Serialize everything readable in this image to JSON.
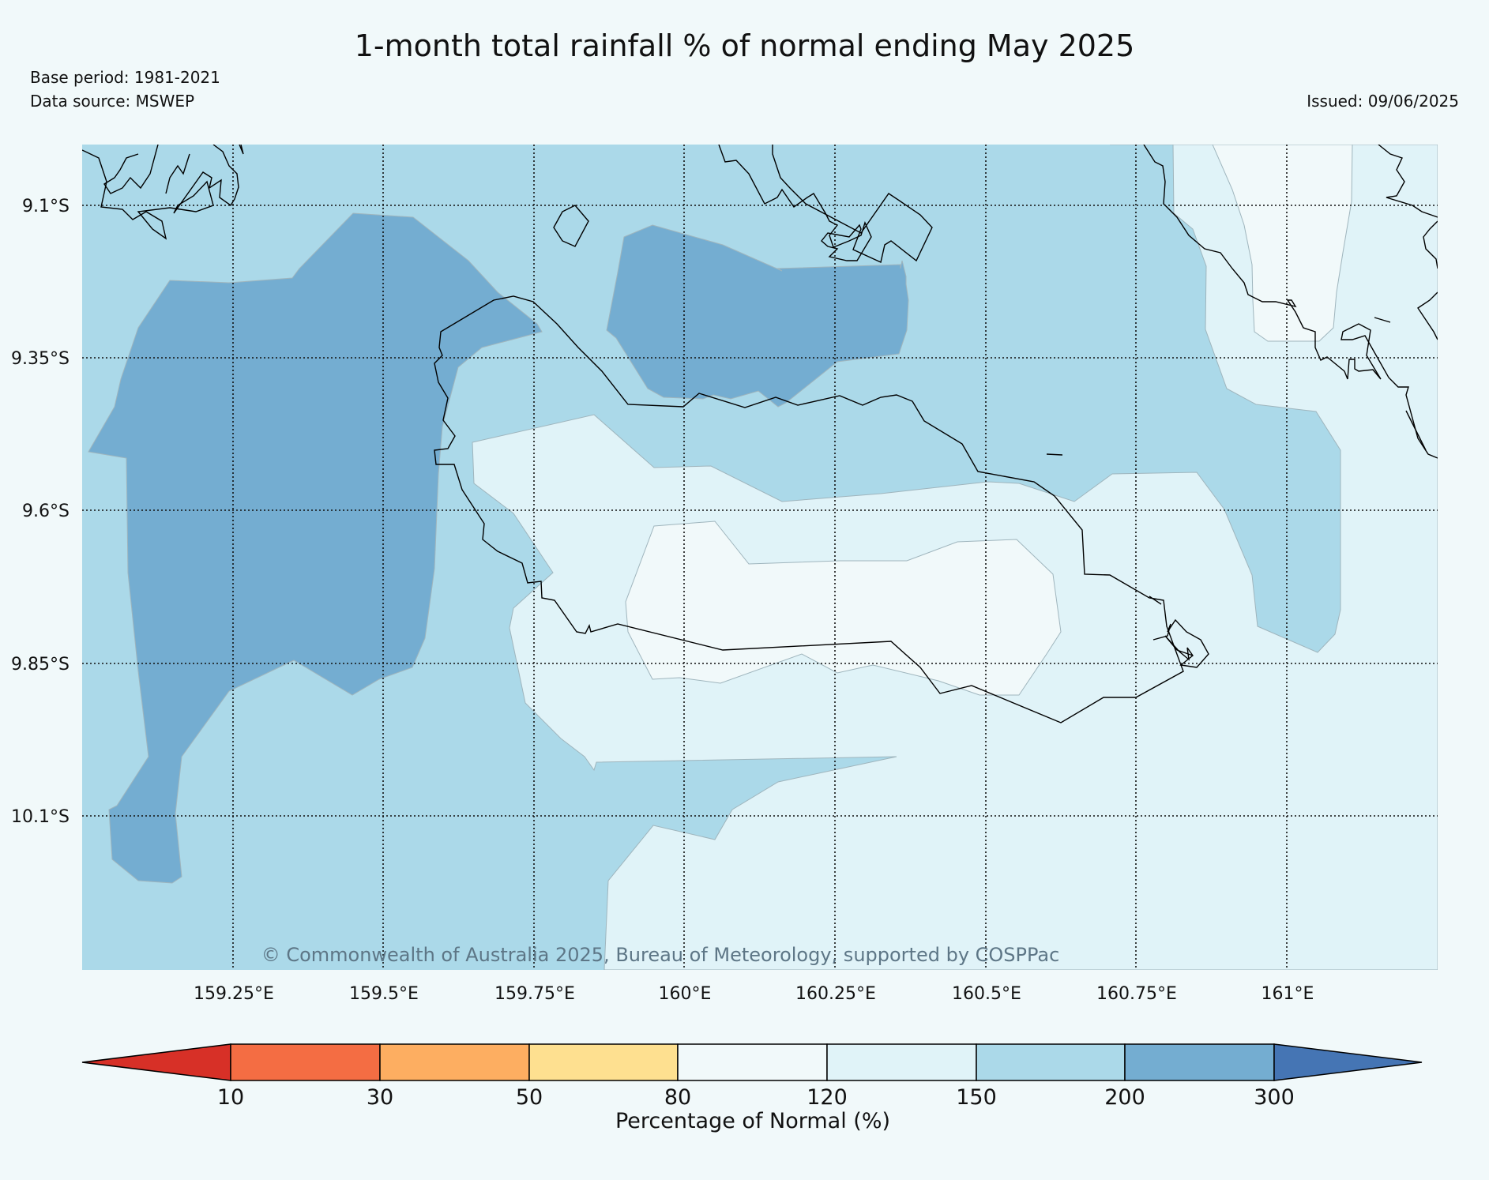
{
  "title": "1-month total rainfall % of normal ending May 2025",
  "base_period": "Base period: 1981-2021",
  "data_source": "Data source: MSWEP",
  "issued": "Issued: 09/06/2025",
  "copyright": "© Commonwealth of Australia 2025, Bureau of Meteorology, supported by COSPPac",
  "map": {
    "lat_ticks": [
      "9.1°S",
      "9.35°S",
      "9.6°S",
      "9.85°S",
      "10.1°S"
    ],
    "lon_ticks": [
      "159.25°E",
      "159.5°E",
      "159.75°E",
      "160°E",
      "160.25°E",
      "160.5°E",
      "160.75°E",
      "161°E"
    ]
  },
  "colorbar": {
    "label": "Percentage of Normal (%)",
    "boundaries": [
      "10",
      "30",
      "50",
      "80",
      "120",
      "150",
      "200",
      "300"
    ],
    "colors": {
      "below_10": "#d73027",
      "10_30": "#f46d43",
      "30_50": "#fdae61",
      "50_80": "#fee090",
      "80_120": "#f1f9fa",
      "120_150": "#e0f3f8",
      "150_200": "#abd9e9",
      "200_300": "#74add1",
      "above_300": "#4575b4"
    }
  }
}
